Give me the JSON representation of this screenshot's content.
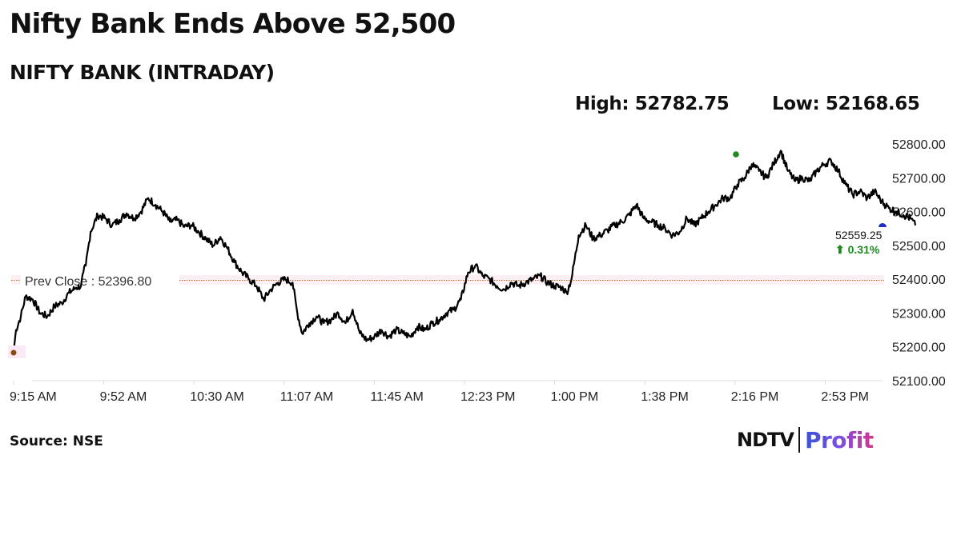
{
  "header": {
    "title": "Nifty Bank Ends Above 52,500",
    "subtitle": "NIFTY BANK (INTRADAY)",
    "high_label": "High: 52782.75",
    "low_label": "Low: 52168.65"
  },
  "footer": {
    "source": "Source: NSE",
    "logo_left": "NDTV",
    "logo_right": "Profit"
  },
  "colors": {
    "line": "#000000",
    "prev_close_line": "#b5651d",
    "prev_close_band": "#fbe9f1",
    "high_marker": "#1e8a1e",
    "low_marker": "#8b4a12",
    "last_marker": "#1f2fbf",
    "change_positive": "#1f8a1f"
  },
  "chart_data": {
    "type": "line",
    "title": "NIFTY BANK (INTRADAY)",
    "xlabel": "",
    "ylabel": "",
    "ylim": [
      52100,
      52800
    ],
    "yticks": [
      "52800.00",
      "52700.00",
      "52600.00",
      "52500.00",
      "52400.00",
      "52300.00",
      "52200.00",
      "52100.00"
    ],
    "xticks": [
      "9:15 AM",
      "9:52 AM",
      "10:30 AM",
      "11:07 AM",
      "11:45 AM",
      "12:23 PM",
      "1:00 PM",
      "1:38 PM",
      "2:16 PM",
      "2:53 PM"
    ],
    "grid": false,
    "legend": "none",
    "prev_close": 52396.8,
    "prev_close_label": "Prev Close : 52396.80",
    "high": 52782.75,
    "low": 52168.65,
    "last": 52559.25,
    "last_label": "52559.25",
    "change_pct_label": "⬆ 0.31%",
    "series": [
      {
        "name": "NIFTY BANK",
        "x_minutes_from_915": [
          0,
          1,
          3,
          5,
          8,
          11,
          14,
          17,
          20,
          23,
          26,
          28,
          29,
          30,
          32,
          35,
          38,
          41,
          44,
          47,
          50,
          53,
          56,
          59,
          62,
          65,
          68,
          71,
          74,
          77,
          80,
          83,
          86,
          89,
          92,
          95,
          98,
          101,
          104,
          107,
          110,
          113,
          116,
          118,
          120,
          123,
          126,
          129,
          132,
          135,
          138,
          141,
          144,
          147,
          150,
          153,
          156,
          159,
          162,
          165,
          168,
          171,
          174,
          177,
          180,
          183,
          186,
          189,
          192,
          195,
          198,
          201,
          204,
          207,
          210,
          213,
          216,
          219,
          222,
          225,
          228,
          230,
          232,
          235,
          238,
          241,
          244,
          247,
          250,
          253,
          256,
          259,
          262,
          265,
          268,
          271,
          274,
          277,
          280,
          283,
          286,
          289,
          292,
          295,
          298,
          301,
          304,
          307,
          310,
          313,
          316,
          319,
          322,
          325,
          328,
          331,
          334,
          337,
          340,
          343,
          346,
          349,
          352,
          355,
          358,
          361,
          364,
          367,
          370,
          373,
          375
        ],
        "values": [
          52185,
          52250,
          52290,
          52350,
          52340,
          52300,
          52290,
          52320,
          52330,
          52360,
          52375,
          52380,
          52420,
          52440,
          52540,
          52590,
          52580,
          52560,
          52575,
          52595,
          52580,
          52600,
          52640,
          52620,
          52600,
          52570,
          52575,
          52555,
          52560,
          52540,
          52520,
          52500,
          52525,
          52490,
          52450,
          52420,
          52400,
          52380,
          52340,
          52370,
          52390,
          52400,
          52390,
          52300,
          52240,
          52270,
          52290,
          52270,
          52280,
          52300,
          52270,
          52310,
          52240,
          52220,
          52230,
          52250,
          52230,
          52250,
          52240,
          52230,
          52260,
          52250,
          52270,
          52280,
          52300,
          52310,
          52340,
          52420,
          52440,
          52410,
          52400,
          52380,
          52370,
          52390,
          52380,
          52390,
          52400,
          52410,
          52390,
          52380,
          52375,
          52360,
          52400,
          52530,
          52560,
          52520,
          52530,
          52545,
          52560,
          52570,
          52590,
          52620,
          52580,
          52570,
          52560,
          52550,
          52530,
          52540,
          52580,
          52560,
          52580,
          52600,
          52620,
          52640,
          52640,
          52680,
          52700,
          52740,
          52720,
          52700,
          52740,
          52780,
          52720,
          52690,
          52700,
          52690,
          52720,
          52740,
          52750,
          52720,
          52680,
          52650,
          52660,
          52640,
          52660,
          52630,
          52610,
          52600,
          52590,
          52580,
          52559.25
        ]
      }
    ]
  }
}
